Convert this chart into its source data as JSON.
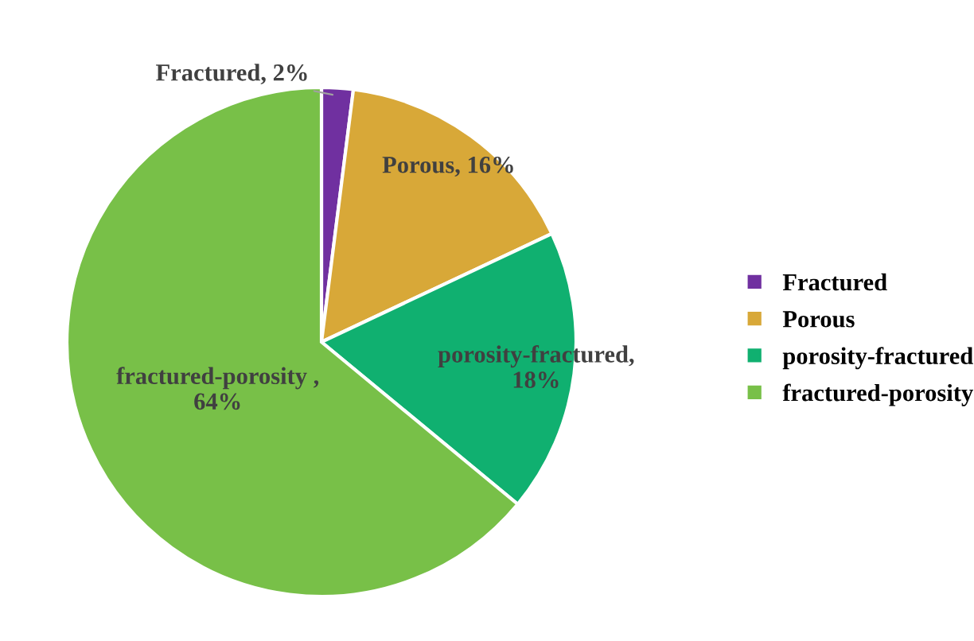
{
  "chart_data": {
    "type": "pie",
    "categories": [
      "Fractured",
      "Porous",
      "porosity-fractured",
      "fractured-porosity"
    ],
    "values": [
      2,
      16,
      18,
      64
    ],
    "colors": [
      "#7030a0",
      "#d8a838",
      "#10b070",
      "#78c048"
    ],
    "value_labels": [
      "Fractured, 2%",
      "Porous, 16%",
      "porosity-fractured,\n18%",
      "fractured-porosity ,\n64%"
    ],
    "legend": "right"
  }
}
